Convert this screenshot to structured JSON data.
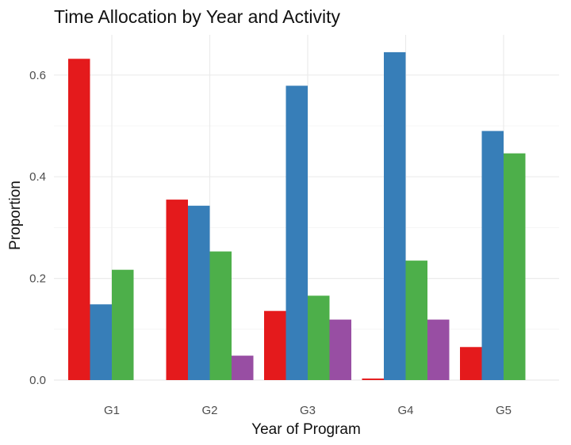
{
  "chart_data": {
    "type": "bar",
    "title": "Time Allocation by Year and Activity",
    "xlabel": "Year of Program",
    "ylabel": "Proportion",
    "categories": [
      "G1",
      "G2",
      "G3",
      "G4",
      "G5"
    ],
    "ylim": [
      0,
      0.66
    ],
    "yticks": [
      0.0,
      0.2,
      0.4,
      0.6
    ],
    "ytick_labels": [
      "0.0",
      "0.2",
      "0.4",
      "0.6"
    ],
    "grid": true,
    "legend": "none",
    "series": [
      {
        "color": "#e41a1c",
        "values": [
          0.632,
          0.355,
          0.136,
          0.003,
          0.065
        ]
      },
      {
        "color": "#377eb8",
        "values": [
          0.149,
          0.343,
          0.579,
          0.645,
          0.49
        ]
      },
      {
        "color": "#4daf4a",
        "values": [
          0.217,
          0.253,
          0.166,
          0.235,
          0.446
        ]
      },
      {
        "color": "#984ea3",
        "values": [
          0.0,
          0.048,
          0.119,
          0.119,
          0.0
        ]
      }
    ]
  }
}
